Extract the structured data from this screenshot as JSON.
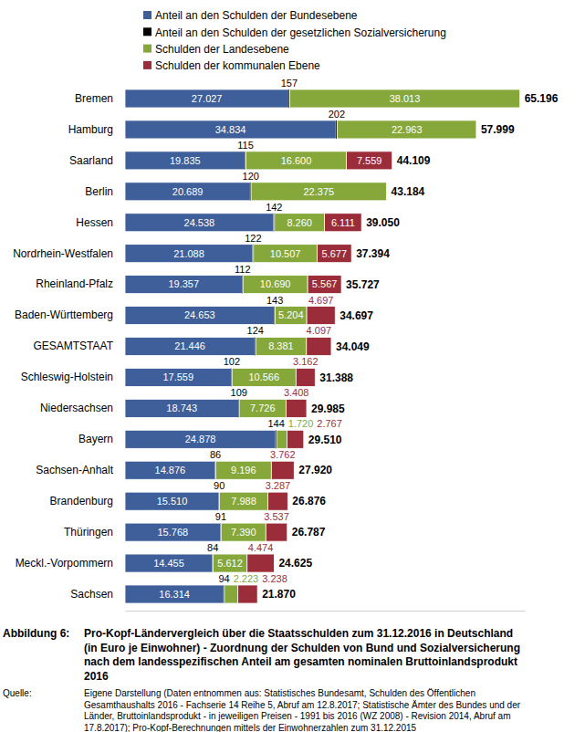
{
  "chart_data": {
    "type": "bar",
    "orientation": "horizontal",
    "stacked": true,
    "data_labels": true,
    "legend": "top",
    "grid": false,
    "tick_labels": "y",
    "title_label": "Abbildung 6:",
    "title_lines": [
      "Pro-Kopf-Ländervergleich über die Staatsschulden zum 31.12.2016 in Deutschland",
      "(in Euro je Einwohner) - Zuordnung der Schulden von Bund und Sozialversicherung",
      "nach dem landesspezifischen Anteil am gesamten nominalen Bruttoinlandsprodukt",
      "2016"
    ],
    "source_label": "Quelle:",
    "source_lines": [
      "Eigene Darstellung (Daten entnommen aus: Statistisches Bundesamt, Schulden des Öffentlichen",
      "Gesamthaushalts 2016 - Fachserie 14 Reihe 5, Abruf am 12.8.2017; Statistische Ämter des Bundes und der",
      "Länder, Bruttoinlandsprodukt - in jeweiligen Preisen - 1991 bis 2016 (WZ 2008) - Revision 2014, Abruf am",
      "17.8.2017); Pro-Kopf-Berechnungen mittels der Einwohnerzahlen zum 31.12.2015"
    ],
    "xlim": [
      0,
      66000
    ],
    "xticks": [],
    "categories": [
      "Bremen",
      "Hamburg",
      "Saarland",
      "Berlin",
      "Hessen",
      "Nordrhein-Westfalen",
      "Rheinland-Pfalz",
      "Baden-Württemberg",
      "GESAMTSTAAT",
      "Schleswig-Holstein",
      "Niedersachsen",
      "Bayern",
      "Sachsen-Anhalt",
      "Brandenburg",
      "Thüringen",
      "Meckl.-Vorpommern",
      "Sachsen"
    ],
    "series": [
      {
        "name": "Anteil an den Schulden der Bundesebene",
        "color": "#3e5f99",
        "values": [
          27027,
          34834,
          19835,
          20689,
          24538,
          21088,
          19357,
          24653,
          21446,
          17559,
          18743,
          24878,
          14876,
          15510,
          15768,
          14455,
          16314
        ],
        "value_labels": [
          "27.027",
          "34.834",
          "19.835",
          "20.689",
          "24.538",
          "21.088",
          "19.357",
          "24.653",
          "21.446",
          "17.559",
          "18.743",
          "24.878",
          "14.876",
          "15.510",
          "15.768",
          "14.455",
          "16.314"
        ]
      },
      {
        "name": "Anteil an den Schulden der gesetzlichen Sozialversicherung",
        "color": "#000000",
        "values": [
          157,
          202,
          115,
          120,
          142,
          122,
          112,
          143,
          124,
          102,
          109,
          144,
          86,
          90,
          91,
          84,
          94
        ],
        "value_labels": [
          "157",
          "202",
          "115",
          "120",
          "142",
          "122",
          "112",
          "143",
          "124",
          "102",
          "109",
          "144",
          "86",
          "90",
          "91",
          "84",
          "94"
        ]
      },
      {
        "name": "Schulden der Landesebene",
        "color": "#86a83b",
        "values": [
          38013,
          22963,
          16600,
          22375,
          8260,
          10507,
          10690,
          5204,
          8381,
          10566,
          7726,
          1720,
          9196,
          7988,
          7390,
          5612,
          2223
        ],
        "value_labels": [
          "38.013",
          "22.963",
          "16.600",
          "22.375",
          "8.260",
          "10.507",
          "10.690",
          "5.204",
          "8.381",
          "10.566",
          "7.726",
          "1.720",
          "9.196",
          "7.988",
          "7.390",
          "5.612",
          "2.223"
        ]
      },
      {
        "name": "Schulden der kommunalen Ebene",
        "color": "#9b2d3a",
        "values": [
          null,
          null,
          7559,
          null,
          6111,
          5677,
          5567,
          4697,
          4097,
          3162,
          3408,
          2767,
          3762,
          3287,
          3537,
          4474,
          3238
        ],
        "value_labels": [
          null,
          null,
          "7.559",
          null,
          "6.111",
          "5.677",
          "5.567",
          "4.697",
          "4.097",
          "3.162",
          "3.408",
          "2.767",
          "3.762",
          "3.287",
          "3.537",
          "4.474",
          "3.238"
        ]
      }
    ],
    "totals": [
      65196,
      57999,
      44109,
      43184,
      39050,
      37394,
      35727,
      34697,
      34049,
      31388,
      29985,
      29510,
      27920,
      26876,
      26787,
      24625,
      21870
    ],
    "total_labels": [
      "65.196",
      "57.999",
      "44.109",
      "43.184",
      "39.050",
      "37.394",
      "35.727",
      "34.697",
      "34.049",
      "31.388",
      "29.985",
      "29.510",
      "27.920",
      "26.876",
      "26.787",
      "24.625",
      "21.870"
    ]
  }
}
